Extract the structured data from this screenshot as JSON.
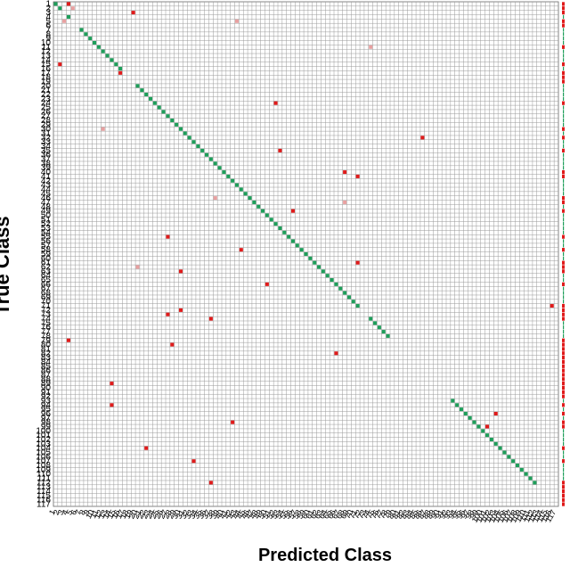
{
  "chart_data": {
    "type": "heatmap",
    "subtype": "confusion-matrix",
    "title": "",
    "xlabel": "Predicted Class",
    "ylabel": "True Class",
    "num_classes": 117,
    "class_labels": [
      "1",
      "2",
      "3",
      "4",
      "5",
      "6",
      "7",
      "8",
      "9",
      "10",
      "11",
      "12",
      "13",
      "14",
      "15",
      "16",
      "17",
      "18",
      "19",
      "20",
      "21",
      "22",
      "23",
      "24",
      "25",
      "26",
      "27",
      "28",
      "29",
      "30",
      "31",
      "32",
      "33",
      "34",
      "35",
      "36",
      "37",
      "38",
      "39",
      "40",
      "41",
      "42",
      "43",
      "44",
      "45",
      "46",
      "47",
      "48",
      "49",
      "50",
      "51",
      "52",
      "53",
      "54",
      "55",
      "56",
      "57",
      "58",
      "59",
      "60",
      "61",
      "62",
      "63",
      "64",
      "65",
      "66",
      "67",
      "68",
      "69",
      "70",
      "71",
      "72",
      "73",
      "74",
      "75",
      "76",
      "77",
      "78",
      "79",
      "80",
      "81",
      "82",
      "83",
      "84",
      "85",
      "86",
      "87",
      "88",
      "89",
      "90",
      "91",
      "92",
      "93",
      "94",
      "95",
      "96",
      "97",
      "98",
      "99",
      "100",
      "101",
      "102",
      "103",
      "104",
      "105",
      "106",
      "107",
      "108",
      "109",
      "110",
      "111",
      "112",
      "113",
      "114",
      "115",
      "116",
      "117"
    ],
    "diagonal": "green",
    "missing_diagonal": [
      3,
      5,
      6,
      17,
      18,
      19,
      72,
      73,
      79,
      80,
      81,
      82,
      83,
      84,
      85,
      86,
      87,
      88,
      89,
      90,
      91,
      92,
      113,
      114,
      115,
      116,
      117
    ],
    "off_diagonal": [
      {
        "true": 1,
        "pred": 4,
        "strength": "strong"
      },
      {
        "true": 2,
        "pred": 5,
        "strength": "light"
      },
      {
        "true": 3,
        "pred": 19,
        "strength": "strong"
      },
      {
        "true": 5,
        "pred": 3,
        "strength": "light"
      },
      {
        "true": 5,
        "pred": 43,
        "strength": "light"
      },
      {
        "true": 11,
        "pred": 74,
        "strength": "light"
      },
      {
        "true": 15,
        "pred": 2,
        "strength": "strong"
      },
      {
        "true": 17,
        "pred": 16,
        "strength": "strong"
      },
      {
        "true": 24,
        "pred": 52,
        "strength": "strong"
      },
      {
        "true": 30,
        "pred": 12,
        "strength": "light"
      },
      {
        "true": 32,
        "pred": 86,
        "strength": "strong"
      },
      {
        "true": 35,
        "pred": 53,
        "strength": "strong"
      },
      {
        "true": 40,
        "pred": 68,
        "strength": "strong"
      },
      {
        "true": 41,
        "pred": 71,
        "strength": "strong"
      },
      {
        "true": 46,
        "pred": 38,
        "strength": "light"
      },
      {
        "true": 47,
        "pred": 68,
        "strength": "light"
      },
      {
        "true": 49,
        "pred": 56,
        "strength": "strong"
      },
      {
        "true": 55,
        "pred": 27,
        "strength": "strong"
      },
      {
        "true": 58,
        "pred": 44,
        "strength": "strong"
      },
      {
        "true": 61,
        "pred": 71,
        "strength": "strong"
      },
      {
        "true": 62,
        "pred": 20,
        "strength": "light"
      },
      {
        "true": 63,
        "pred": 30,
        "strength": "strong"
      },
      {
        "true": 66,
        "pred": 50,
        "strength": "strong"
      },
      {
        "true": 71,
        "pred": 116,
        "strength": "strong"
      },
      {
        "true": 72,
        "pred": 30,
        "strength": "strong"
      },
      {
        "true": 73,
        "pred": 27,
        "strength": "strong"
      },
      {
        "true": 74,
        "pred": 37,
        "strength": "strong"
      },
      {
        "true": 79,
        "pred": 4,
        "strength": "strong"
      },
      {
        "true": 80,
        "pred": 28,
        "strength": "strong"
      },
      {
        "true": 82,
        "pred": 66,
        "strength": "strong"
      },
      {
        "true": 89,
        "pred": 14,
        "strength": "strong"
      },
      {
        "true": 94,
        "pred": 14,
        "strength": "strong"
      },
      {
        "true": 96,
        "pred": 103,
        "strength": "strong"
      },
      {
        "true": 98,
        "pred": 42,
        "strength": "strong"
      },
      {
        "true": 99,
        "pred": 101,
        "strength": "strong"
      },
      {
        "true": 104,
        "pred": 22,
        "strength": "strong"
      },
      {
        "true": 107,
        "pred": 33,
        "strength": "strong"
      },
      {
        "true": 112,
        "pred": 37,
        "strength": "strong"
      }
    ],
    "colors": {
      "correct": "#1e9e5a",
      "error": "#e01b1b",
      "error_light": "#e8a0a0",
      "grid": "#9a9a9a",
      "summary_ok": "#1e9e5a",
      "summary_err": "#e01b1b"
    },
    "grid": true
  }
}
